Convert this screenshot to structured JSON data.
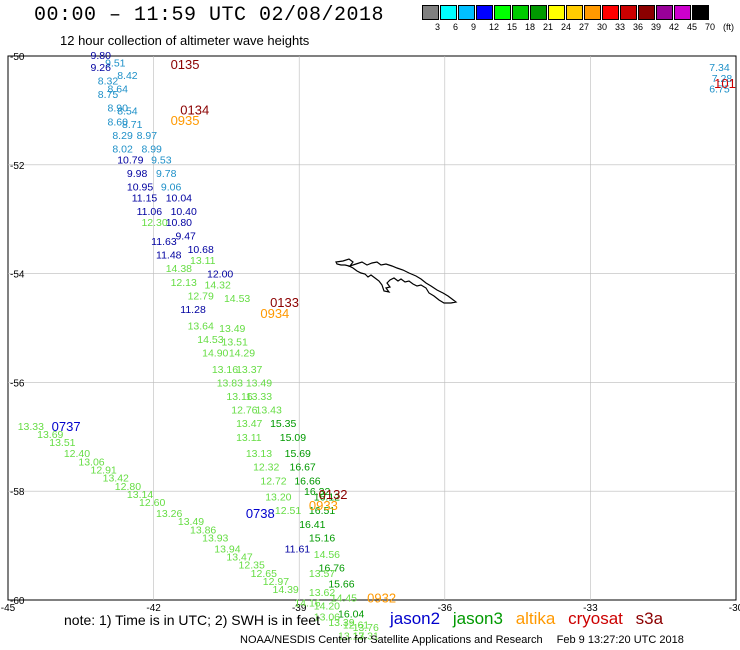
{
  "header": {
    "title": "00:00 – 11:59 UTC 02/08/2018",
    "subtitle": "12 hour collection of altimeter wave heights"
  },
  "colorbar": {
    "colors": [
      "#808080",
      "#00ffff",
      "#00bfff",
      "#0000ff",
      "#00ff00",
      "#00cc00",
      "#009900",
      "#ffff00",
      "#ffcc00",
      "#ff9900",
      "#ff0000",
      "#cc0000",
      "#8b0000",
      "#990099",
      "#cc00cc",
      "#000000"
    ],
    "labels": [
      "3",
      "6",
      "9",
      "12",
      "15",
      "18",
      "21",
      "24",
      "27",
      "30",
      "33",
      "36",
      "39",
      "42",
      "45",
      "70",
      "(ft)"
    ]
  },
  "axes": {
    "x_ticks": [
      "-45",
      "-42",
      "-39",
      "-36",
      "-33",
      "-30"
    ],
    "y_ticks": [
      "-50",
      "-52",
      "-54",
      "-56",
      "-58",
      "-60"
    ]
  },
  "colors": {
    "jason2": "#0000cc",
    "jason3": "#009900",
    "altika": "#ff9900",
    "cryosat": "#cc0000",
    "s3a": "#8b0000",
    "swh_cyan": "#1e90c8",
    "swh_blue": "#0000a0",
    "swh_light_green": "#66dd44",
    "swh_green": "#009900"
  },
  "passes": [
    {
      "label": "0135",
      "lon": -41.65,
      "lat": -50.15,
      "sat": "s3a"
    },
    {
      "label": "0134",
      "lon": -41.45,
      "lat": -50.98,
      "sat": "s3a"
    },
    {
      "label": "0935",
      "lon": -41.65,
      "lat": -51.18,
      "sat": "altika"
    },
    {
      "label": "0133",
      "lon": -39.6,
      "lat": -54.52,
      "sat": "s3a"
    },
    {
      "label": "0934",
      "lon": -39.8,
      "lat": -54.72,
      "sat": "altika"
    },
    {
      "label": "0737",
      "lon": -44.1,
      "lat": -56.8,
      "sat": "jason2"
    },
    {
      "label": "0132",
      "lon": -38.6,
      "lat": -58.05,
      "sat": "s3a"
    },
    {
      "label": "0933",
      "lon": -38.8,
      "lat": -58.25,
      "sat": "altika"
    },
    {
      "label": "0738",
      "lon": -40.1,
      "lat": -58.4,
      "sat": "jason2"
    },
    {
      "label": "0932",
      "lon": -37.6,
      "lat": -59.95,
      "sat": "altika"
    },
    {
      "label": "101",
      "lon": -30.45,
      "lat": -50.5,
      "sat": "cryosat"
    }
  ],
  "swh": [
    {
      "v": "9.80",
      "lon": -43.3,
      "lat": -49.98,
      "c": "swh_blue"
    },
    {
      "v": "9.51",
      "lon": -43.0,
      "lat": -50.12,
      "c": "swh_cyan"
    },
    {
      "v": "9.26",
      "lon": -43.3,
      "lat": -50.2,
      "c": "swh_blue"
    },
    {
      "v": "8.42",
      "lon": -42.75,
      "lat": -50.35,
      "c": "swh_cyan"
    },
    {
      "v": "8.32",
      "lon": -43.15,
      "lat": -50.45,
      "c": "swh_cyan"
    },
    {
      "v": "8.64",
      "lon": -42.95,
      "lat": -50.6,
      "c": "swh_cyan"
    },
    {
      "v": "8.75",
      "lon": -43.15,
      "lat": -50.7,
      "c": "swh_cyan"
    },
    {
      "v": "8.90",
      "lon": -42.95,
      "lat": -50.95,
      "c": "swh_cyan"
    },
    {
      "v": "8.54",
      "lon": -42.75,
      "lat": -51.0,
      "c": "swh_cyan"
    },
    {
      "v": "8.60",
      "lon": -42.95,
      "lat": -51.2,
      "c": "swh_cyan"
    },
    {
      "v": "8.71",
      "lon": -42.65,
      "lat": -51.25,
      "c": "swh_cyan"
    },
    {
      "v": "8.29",
      "lon": -42.85,
      "lat": -51.45,
      "c": "swh_cyan"
    },
    {
      "v": "8.97",
      "lon": -42.35,
      "lat": -51.45,
      "c": "swh_cyan"
    },
    {
      "v": "8.02",
      "lon": -42.85,
      "lat": -51.7,
      "c": "swh_cyan"
    },
    {
      "v": "8.99",
      "lon": -42.25,
      "lat": -51.7,
      "c": "swh_cyan"
    },
    {
      "v": "10.79",
      "lon": -42.75,
      "lat": -51.9,
      "c": "swh_blue"
    },
    {
      "v": "9.53",
      "lon": -42.05,
      "lat": -51.9,
      "c": "swh_cyan"
    },
    {
      "v": "9.98",
      "lon": -42.55,
      "lat": -52.15,
      "c": "swh_blue"
    },
    {
      "v": "9.78",
      "lon": -41.95,
      "lat": -52.15,
      "c": "swh_cyan"
    },
    {
      "v": "10.95",
      "lon": -42.55,
      "lat": -52.4,
      "c": "swh_blue"
    },
    {
      "v": "9.06",
      "lon": -41.85,
      "lat": -52.4,
      "c": "swh_cyan"
    },
    {
      "v": "11.15",
      "lon": -42.45,
      "lat": -52.6,
      "c": "swh_blue"
    },
    {
      "v": "10.04",
      "lon": -41.75,
      "lat": -52.6,
      "c": "swh_blue"
    },
    {
      "v": "11.06",
      "lon": -42.35,
      "lat": -52.85,
      "c": "swh_blue"
    },
    {
      "v": "10.40",
      "lon": -41.65,
      "lat": -52.85,
      "c": "swh_blue"
    },
    {
      "v": "12.30",
      "lon": -42.25,
      "lat": -53.05,
      "c": "swh_light_green"
    },
    {
      "v": "10.80",
      "lon": -41.75,
      "lat": -53.05,
      "c": "swh_blue"
    },
    {
      "v": "9.47",
      "lon": -41.55,
      "lat": -53.3,
      "c": "swh_blue"
    },
    {
      "v": "11.63",
      "lon": -42.05,
      "lat": -53.4,
      "c": "swh_blue"
    },
    {
      "v": "10.68",
      "lon": -41.3,
      "lat": -53.55,
      "c": "swh_blue"
    },
    {
      "v": "11.48",
      "lon": -41.95,
      "lat": -53.65,
      "c": "swh_blue"
    },
    {
      "v": "13.11",
      "lon": -41.25,
      "lat": -53.75,
      "c": "swh_light_green"
    },
    {
      "v": "14.38",
      "lon": -41.75,
      "lat": -53.9,
      "c": "swh_light_green"
    },
    {
      "v": "12.00",
      "lon": -40.9,
      "lat": -54.0,
      "c": "swh_blue"
    },
    {
      "v": "12.13",
      "lon": -41.65,
      "lat": -54.15,
      "c": "swh_light_green"
    },
    {
      "v": "14.32",
      "lon": -40.95,
      "lat": -54.2,
      "c": "swh_light_green"
    },
    {
      "v": "12.79",
      "lon": -41.3,
      "lat": -54.4,
      "c": "swh_light_green"
    },
    {
      "v": "14.53",
      "lon": -40.55,
      "lat": -54.45,
      "c": "swh_light_green"
    },
    {
      "v": "11.28",
      "lon": -41.45,
      "lat": -54.65,
      "c": "swh_blue"
    },
    {
      "v": "13.64",
      "lon": -41.3,
      "lat": -54.95,
      "c": "swh_light_green"
    },
    {
      "v": "13.49",
      "lon": -40.65,
      "lat": -55.0,
      "c": "swh_light_green"
    },
    {
      "v": "14.53",
      "lon": -41.1,
      "lat": -55.2,
      "c": "swh_light_green"
    },
    {
      "v": "13.51",
      "lon": -40.6,
      "lat": -55.25,
      "c": "swh_light_green"
    },
    {
      "v": "14.90",
      "lon": -41.0,
      "lat": -55.45,
      "c": "swh_light_green"
    },
    {
      "v": "14.29",
      "lon": -40.45,
      "lat": -55.45,
      "c": "swh_light_green"
    },
    {
      "v": "13.16",
      "lon": -40.8,
      "lat": -55.75,
      "c": "swh_light_green"
    },
    {
      "v": "13.37",
      "lon": -40.3,
      "lat": -55.75,
      "c": "swh_light_green"
    },
    {
      "v": "13.83",
      "lon": -40.7,
      "lat": -56.0,
      "c": "swh_light_green"
    },
    {
      "v": "13.49",
      "lon": -40.1,
      "lat": -56.0,
      "c": "swh_light_green"
    },
    {
      "v": "13.16",
      "lon": -40.5,
      "lat": -56.25,
      "c": "swh_light_green"
    },
    {
      "v": "13.33",
      "lon": -40.1,
      "lat": -56.25,
      "c": "swh_light_green"
    },
    {
      "v": "12.76",
      "lon": -40.4,
      "lat": -56.5,
      "c": "swh_light_green"
    },
    {
      "v": "13.43",
      "lon": -39.9,
      "lat": -56.5,
      "c": "swh_light_green"
    },
    {
      "v": "13.47",
      "lon": -40.3,
      "lat": -56.75,
      "c": "swh_light_green"
    },
    {
      "v": "15.35",
      "lon": -39.6,
      "lat": -56.75,
      "c": "swh_green"
    },
    {
      "v": "13.11",
      "lon": -40.3,
      "lat": -57.0,
      "c": "swh_light_green"
    },
    {
      "v": "15.09",
      "lon": -39.4,
      "lat": -57.0,
      "c": "swh_green"
    },
    {
      "v": "13.13",
      "lon": -40.1,
      "lat": -57.3,
      "c": "swh_light_green"
    },
    {
      "v": "15.69",
      "lon": -39.3,
      "lat": -57.3,
      "c": "swh_green"
    },
    {
      "v": "12.32",
      "lon": -39.95,
      "lat": -57.55,
      "c": "swh_light_green"
    },
    {
      "v": "16.67",
      "lon": -39.2,
      "lat": -57.55,
      "c": "swh_green"
    },
    {
      "v": "12.72",
      "lon": -39.8,
      "lat": -57.8,
      "c": "swh_light_green"
    },
    {
      "v": "16.66",
      "lon": -39.1,
      "lat": -57.8,
      "c": "swh_green"
    },
    {
      "v": "13.20",
      "lon": -39.7,
      "lat": -58.1,
      "c": "swh_light_green"
    },
    {
      "v": "16.32",
      "lon": -38.9,
      "lat": -58.0,
      "c": "swh_green"
    },
    {
      "v": "16.12",
      "lon": -38.7,
      "lat": -58.1,
      "c": "swh_green"
    },
    {
      "v": "12.51",
      "lon": -39.5,
      "lat": -58.35,
      "c": "swh_light_green"
    },
    {
      "v": "16.51",
      "lon": -38.8,
      "lat": -58.35,
      "c": "swh_green"
    },
    {
      "v": "16.41",
      "lon": -39.0,
      "lat": -58.6,
      "c": "swh_green"
    },
    {
      "v": "15.16",
      "lon": -38.8,
      "lat": -58.85,
      "c": "swh_green"
    },
    {
      "v": "11.61",
      "lon": -39.3,
      "lat": -59.05,
      "c": "swh_blue"
    },
    {
      "v": "14.56",
      "lon": -38.7,
      "lat": -59.15,
      "c": "swh_light_green"
    },
    {
      "v": "16.76",
      "lon": -38.6,
      "lat": -59.4,
      "c": "swh_green"
    },
    {
      "v": "13.57",
      "lon": -38.8,
      "lat": -59.5,
      "c": "swh_light_green"
    },
    {
      "v": "15.66",
      "lon": -38.4,
      "lat": -59.7,
      "c": "swh_green"
    },
    {
      "v": "13.62",
      "lon": -38.8,
      "lat": -59.85,
      "c": "swh_light_green"
    },
    {
      "v": "14.45",
      "lon": -38.35,
      "lat": -59.95,
      "c": "swh_light_green"
    },
    {
      "v": "14.16",
      "lon": -39.1,
      "lat": -60.05,
      "c": "swh_light_green"
    },
    {
      "v": "14.20",
      "lon": -38.7,
      "lat": -60.1,
      "c": "swh_light_green"
    },
    {
      "v": "16.04",
      "lon": -38.2,
      "lat": -60.25,
      "c": "swh_green"
    },
    {
      "v": "13.06",
      "lon": -38.7,
      "lat": -60.3,
      "c": "swh_light_green"
    },
    {
      "v": "13.39",
      "lon": -38.4,
      "lat": -60.4,
      "c": "swh_light_green"
    },
    {
      "v": "12.61",
      "lon": -38.1,
      "lat": -60.45,
      "c": "swh_light_green"
    },
    {
      "v": "13.76",
      "lon": -37.9,
      "lat": -60.5,
      "c": "swh_light_green"
    },
    {
      "v": "13.17",
      "lon": -38.2,
      "lat": -60.65,
      "c": "swh_light_green"
    },
    {
      "v": "13.31",
      "lon": -37.9,
      "lat": -60.65,
      "c": "swh_light_green"
    },
    {
      "v": "13.33",
      "lon": -44.8,
      "lat": -56.8,
      "c": "swh_light_green"
    },
    {
      "v": "13.69",
      "lon": -44.4,
      "lat": -56.95,
      "c": "swh_light_green"
    },
    {
      "v": "13.51",
      "lon": -44.15,
      "lat": -57.1,
      "c": "swh_light_green"
    },
    {
      "v": "12.40",
      "lon": -43.85,
      "lat": -57.3,
      "c": "swh_light_green"
    },
    {
      "v": "13.06",
      "lon": -43.55,
      "lat": -57.45,
      "c": "swh_light_green"
    },
    {
      "v": "12.91",
      "lon": -43.3,
      "lat": -57.6,
      "c": "swh_light_green"
    },
    {
      "v": "13.42",
      "lon": -43.05,
      "lat": -57.75,
      "c": "swh_light_green"
    },
    {
      "v": "12.80",
      "lon": -42.8,
      "lat": -57.9,
      "c": "swh_light_green"
    },
    {
      "v": "13.14",
      "lon": -42.55,
      "lat": -58.05,
      "c": "swh_light_green"
    },
    {
      "v": "12.60",
      "lon": -42.3,
      "lat": -58.2,
      "c": "swh_light_green"
    },
    {
      "v": "13.26",
      "lon": -41.95,
      "lat": -58.4,
      "c": "swh_light_green"
    },
    {
      "v": "13.49",
      "lon": -41.5,
      "lat": -58.55,
      "c": "swh_light_green"
    },
    {
      "v": "13.86",
      "lon": -41.25,
      "lat": -58.7,
      "c": "swh_light_green"
    },
    {
      "v": "13.93",
      "lon": -41.0,
      "lat": -58.85,
      "c": "swh_light_green"
    },
    {
      "v": "13.94",
      "lon": -40.75,
      "lat": -59.05,
      "c": "swh_light_green"
    },
    {
      "v": "13.47",
      "lon": -40.5,
      "lat": -59.2,
      "c": "swh_light_green"
    },
    {
      "v": "12.35",
      "lon": -40.25,
      "lat": -59.35,
      "c": "swh_light_green"
    },
    {
      "v": "12.65",
      "lon": -40.0,
      "lat": -59.5,
      "c": "swh_light_green"
    },
    {
      "v": "12.97",
      "lon": -39.75,
      "lat": -59.65,
      "c": "swh_light_green"
    },
    {
      "v": "14.39",
      "lon": -39.55,
      "lat": -59.8,
      "c": "swh_light_green"
    },
    {
      "v": "7.34",
      "lon": -30.55,
      "lat": -50.2,
      "c": "swh_cyan"
    },
    {
      "v": "7.28",
      "lon": -30.5,
      "lat": -50.4,
      "c": "swh_cyan"
    },
    {
      "v": "6.75",
      "lon": -30.55,
      "lat": -50.6,
      "c": "swh_cyan"
    }
  ],
  "footer": {
    "note": "note: 1) Time is in UTC; 2) SWH is in feet",
    "legend": {
      "jason2": "jason2",
      "jason3": "jason3",
      "altika": "altika",
      "cryosat": "cryosat",
      "s3a": "s3a"
    },
    "credit": "NOAA/NESDIS Center for Satellite Applications and Research",
    "timestamp": "Feb  9 13:27:20 UTC 2018"
  }
}
